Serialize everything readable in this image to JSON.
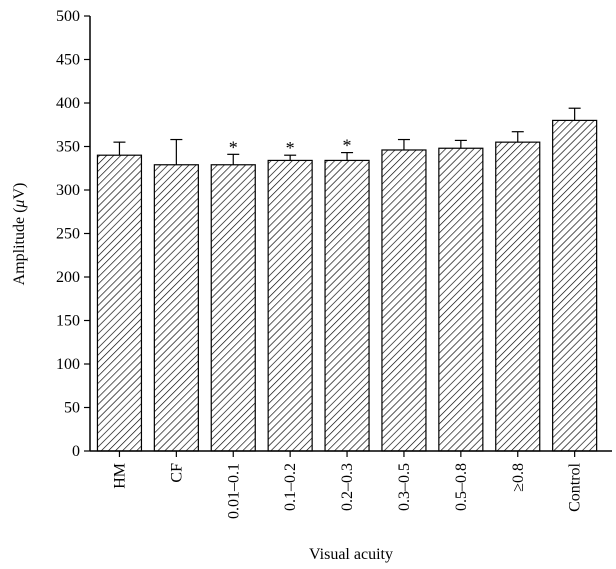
{
  "chart_data": {
    "type": "bar",
    "xlabel": "Visual acuity",
    "ylabel_prefix": "Amplitude (",
    "ylabel_symbol": "μ",
    "ylabel_suffix": "V)",
    "ylim": [
      0,
      500
    ],
    "yticks": [
      0,
      50,
      100,
      150,
      200,
      250,
      300,
      350,
      400,
      450,
      500
    ],
    "categories": [
      "HM",
      "CF",
      "0.01–0.1",
      "0.1–0.2",
      "0.2–0.3",
      "0.3–0.5",
      "0.5–0.8",
      "≥0.8",
      "Control"
    ],
    "values": [
      340,
      329,
      329,
      334,
      334,
      346,
      348,
      355,
      380
    ],
    "errors": [
      15,
      29,
      12,
      6,
      9,
      12,
      9,
      12,
      14
    ],
    "significance_marker": "*",
    "significant": [
      false,
      false,
      true,
      true,
      true,
      false,
      false,
      false,
      false
    ],
    "grid": false,
    "legend": "none",
    "bar_fill": "diagonal-hatch",
    "colors": {
      "ink": "#000000",
      "background": "#ffffff"
    }
  }
}
